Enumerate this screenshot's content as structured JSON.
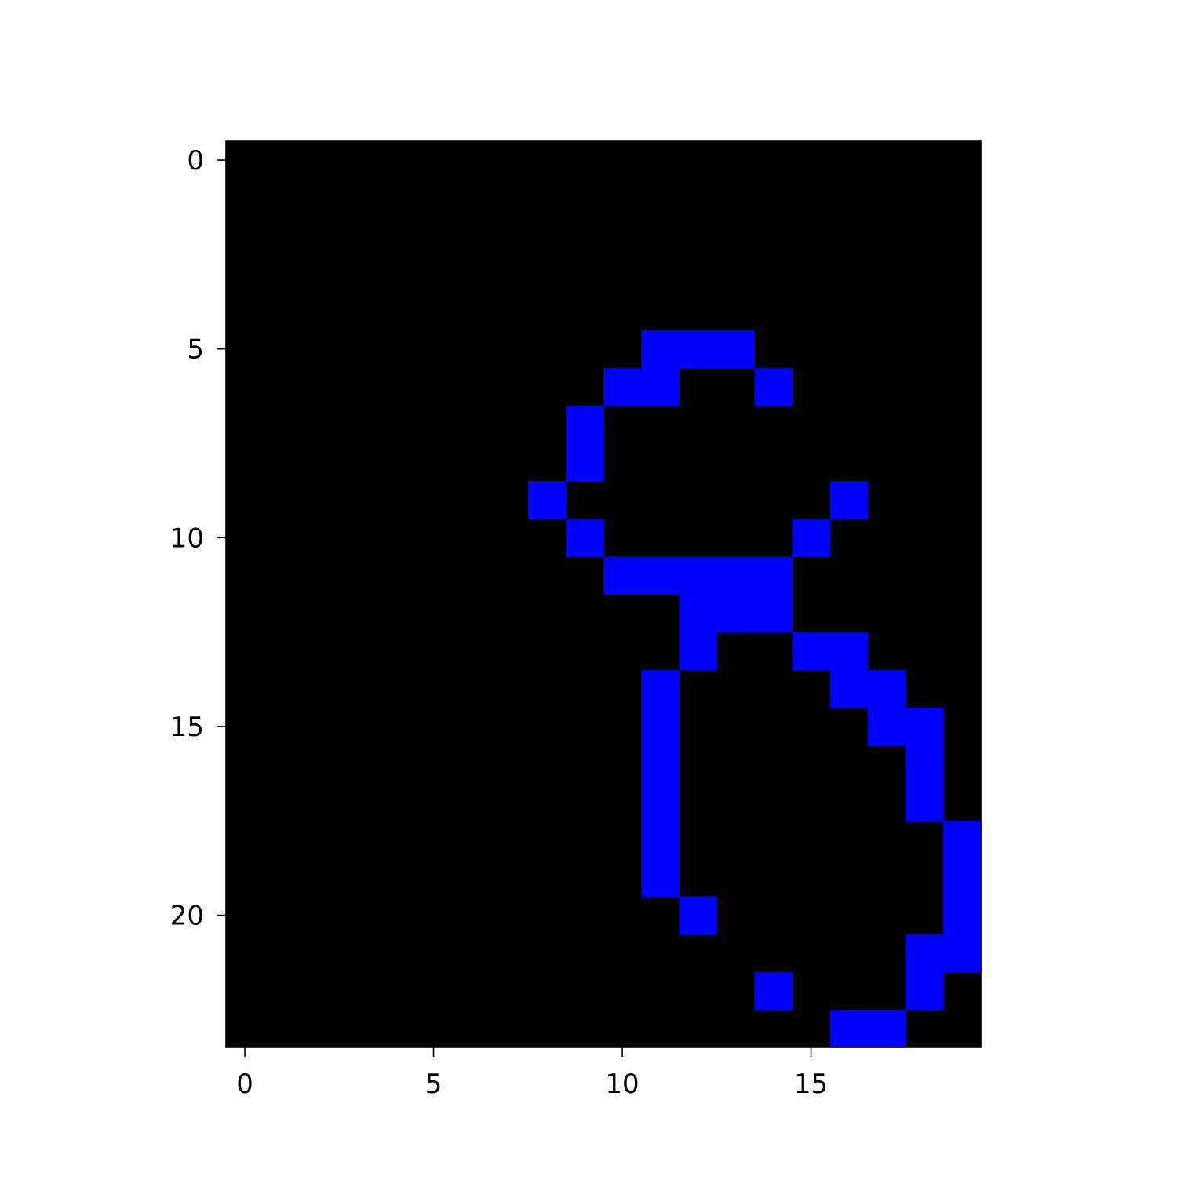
{
  "chart_data": {
    "type": "heatmap",
    "title": "",
    "xlabel": "",
    "ylabel": "",
    "grid": false,
    "colors": {
      "background": "#000000",
      "foreground": "#0000ff"
    },
    "nrows": 24,
    "ncols": 20,
    "xlim": [
      -0.5,
      19.5
    ],
    "ylim": [
      23.5,
      -0.5
    ],
    "x_ticks": [
      0,
      5,
      10,
      15
    ],
    "x_tick_labels": [
      "0",
      "5",
      "10",
      "15"
    ],
    "y_ticks": [
      0,
      5,
      10,
      15,
      20
    ],
    "y_tick_labels": [
      "0",
      "5",
      "10",
      "15",
      "20"
    ],
    "on_cells": [
      [
        5,
        11
      ],
      [
        5,
        12
      ],
      [
        5,
        13
      ],
      [
        6,
        10
      ],
      [
        6,
        11
      ],
      [
        6,
        14
      ],
      [
        7,
        9
      ],
      [
        8,
        9
      ],
      [
        9,
        8
      ],
      [
        9,
        16
      ],
      [
        10,
        9
      ],
      [
        10,
        15
      ],
      [
        11,
        10
      ],
      [
        11,
        11
      ],
      [
        11,
        12
      ],
      [
        11,
        13
      ],
      [
        11,
        14
      ],
      [
        12,
        12
      ],
      [
        12,
        13
      ],
      [
        12,
        14
      ],
      [
        13,
        12
      ],
      [
        13,
        15
      ],
      [
        13,
        16
      ],
      [
        14,
        11
      ],
      [
        14,
        16
      ],
      [
        14,
        17
      ],
      [
        15,
        11
      ],
      [
        15,
        17
      ],
      [
        15,
        18
      ],
      [
        16,
        11
      ],
      [
        16,
        18
      ],
      [
        17,
        11
      ],
      [
        17,
        18
      ],
      [
        18,
        11
      ],
      [
        18,
        19
      ],
      [
        19,
        11
      ],
      [
        19,
        19
      ],
      [
        20,
        12
      ],
      [
        20,
        19
      ],
      [
        21,
        18
      ],
      [
        21,
        19
      ],
      [
        22,
        14
      ],
      [
        22,
        18
      ],
      [
        23,
        16
      ],
      [
        23,
        17
      ]
    ]
  }
}
